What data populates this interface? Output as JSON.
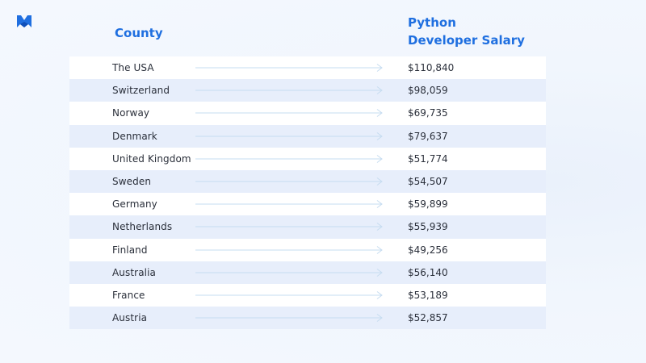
{
  "brand": {
    "logo_icon": "m-logo-icon",
    "accent_color": "#1f6fe0"
  },
  "header": {
    "country_label": "County",
    "salary_label_line1": "Python",
    "salary_label_line2": "Developer Salary"
  },
  "rows": [
    {
      "country": "The USA",
      "salary": "$110,840"
    },
    {
      "country": "Switzerland",
      "salary": "$98,059"
    },
    {
      "country": "Norway",
      "salary": "$69,735"
    },
    {
      "country": "Denmark",
      "salary": "$79,637"
    },
    {
      "country": "United Kingdom",
      "salary": "$51,774"
    },
    {
      "country": "Sweden",
      "salary": "$54,507"
    },
    {
      "country": "Germany",
      "salary": "$59,899"
    },
    {
      "country": "Netherlands",
      "salary": "$55,939"
    },
    {
      "country": "Finland",
      "salary": "$49,256"
    },
    {
      "country": "Australia",
      "salary": "$56,140"
    },
    {
      "country": "France",
      "salary": "$53,189"
    },
    {
      "country": "Austria",
      "salary": "$52,857"
    }
  ]
}
